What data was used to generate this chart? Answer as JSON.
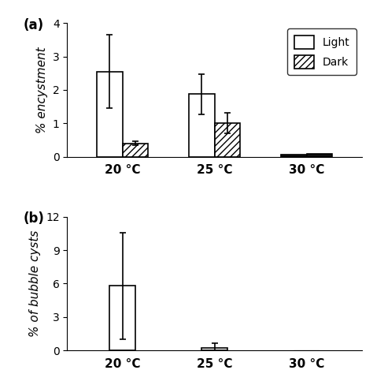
{
  "panel_a": {
    "ylabel": "% encystment",
    "ylim": [
      0,
      4
    ],
    "yticks": [
      0,
      1,
      2,
      3,
      4
    ],
    "categories": [
      "20 °C",
      "25 °C",
      "30 °C"
    ],
    "light_values": [
      2.55,
      1.87,
      0.07
    ],
    "light_errors": [
      1.1,
      0.6,
      0.0
    ],
    "dark_values": [
      0.4,
      1.01,
      0.09
    ],
    "dark_errors": [
      0.06,
      0.3,
      0.0
    ],
    "label": "(a)"
  },
  "panel_b": {
    "ylabel": "% of bubble cysts",
    "ylim": [
      0,
      12
    ],
    "yticks": [
      0,
      3,
      6,
      9,
      12
    ],
    "categories": [
      "20 °C",
      "25 °C",
      "30 °C"
    ],
    "light_values": [
      5.8,
      0.2,
      0.01
    ],
    "light_errors": [
      4.8,
      0.45,
      0.0
    ],
    "label": "(b)"
  },
  "bar_width": 0.28,
  "light_color": "#ffffff",
  "dark_color": "#111111",
  "edge_color": "#000000",
  "hatch_pattern": "////",
  "legend_labels": [
    "Light",
    "Dark"
  ]
}
